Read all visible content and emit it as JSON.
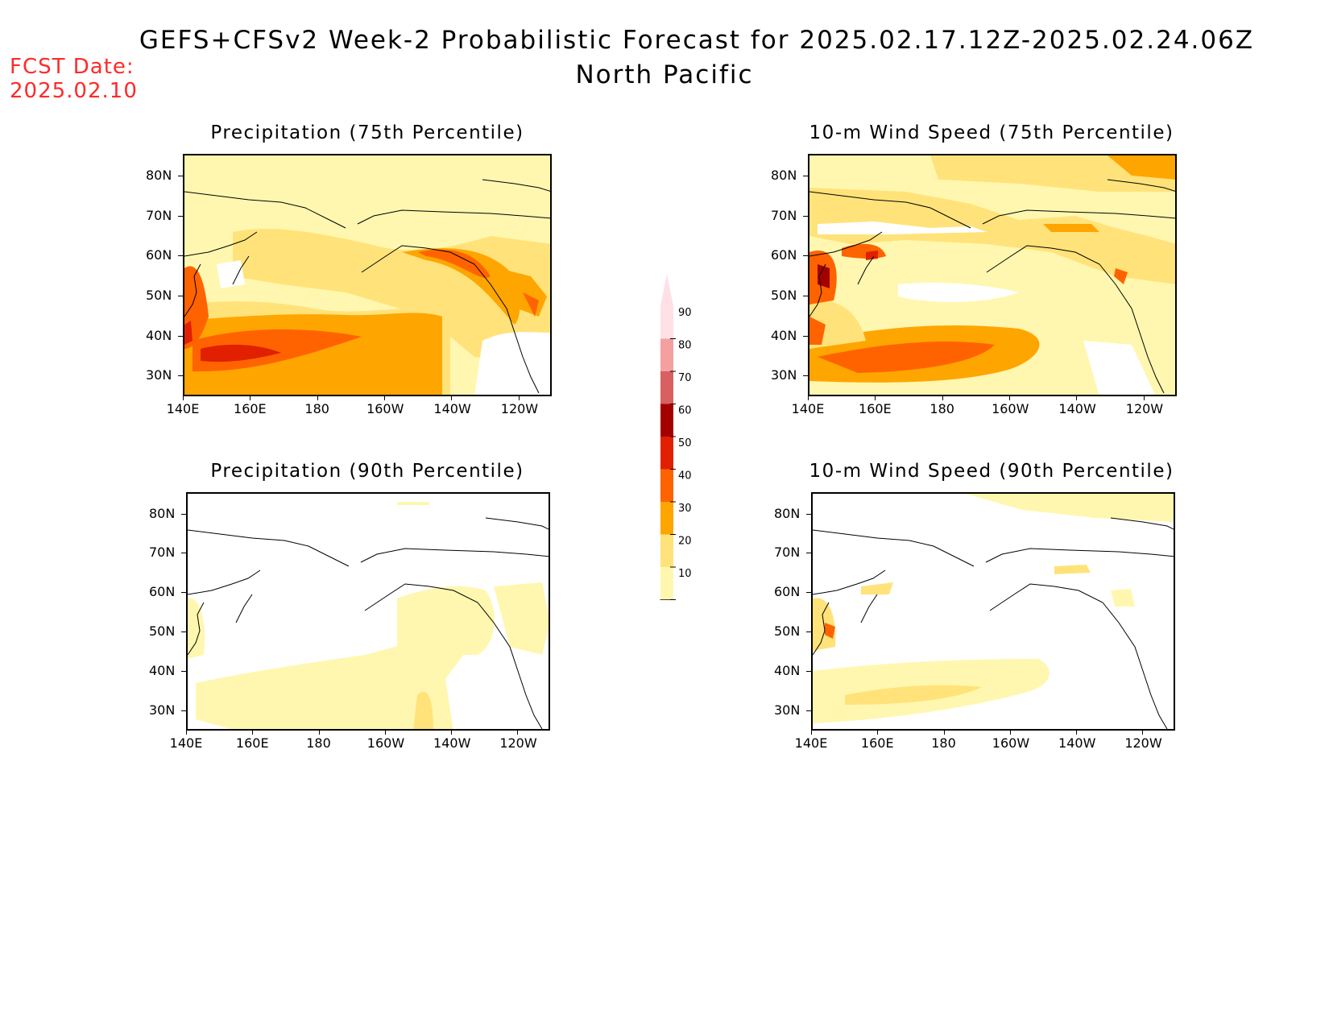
{
  "header": {
    "title": "GEFS+CFSv2 Week-2 Probabilistic Forecast for 2025.02.17.12Z-2025.02.24.06Z",
    "region": "North Pacific",
    "fcst_label": "FCST Date:",
    "fcst_date": "2025.02.10"
  },
  "axes": {
    "lat_labels": [
      "80N",
      "70N",
      "60N",
      "50N",
      "40N",
      "30N"
    ],
    "lon_labels": [
      "140E",
      "160E",
      "180",
      "160W",
      "140W",
      "120W"
    ]
  },
  "panels": [
    {
      "id": "precip75",
      "title": "Precipitation (75th Percentile)"
    },
    {
      "id": "wind75",
      "title": "10-m Wind Speed (75th Percentile)"
    },
    {
      "id": "precip90",
      "title": "Precipitation (90th Percentile)"
    },
    {
      "id": "wind90",
      "title": "10-m Wind Speed (90th Percentile)"
    }
  ],
  "colorbar": {
    "labels": [
      "90",
      "80",
      "70",
      "60",
      "50",
      "40",
      "30",
      "20",
      "10"
    ],
    "colors": {
      "10": "#fff7b0",
      "20": "#ffe37a",
      "30": "#ffa500",
      "40": "#ff6300",
      "50": "#e02000",
      "60": "#a50000",
      "70": "#d86060",
      "80": "#f4a0a0",
      "90": "#ffe0e6"
    }
  }
}
